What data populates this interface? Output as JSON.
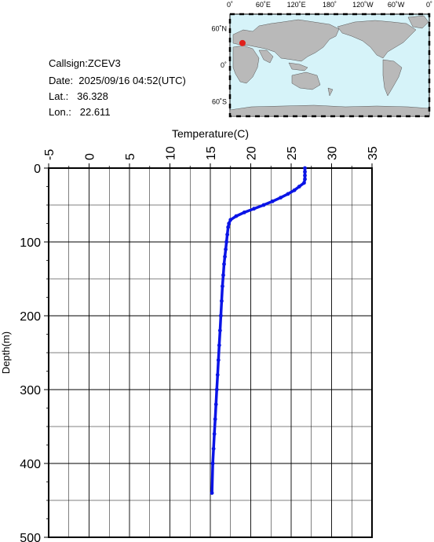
{
  "meta": {
    "callsign": "Callsign:ZCEV3",
    "date": "Date:  2025/09/16 04:52(UTC)",
    "lat": "Lat.:   36.328",
    "lon": "Lon.:   22.611"
  },
  "map": {
    "lon_labels": [
      "0˚",
      "60˚E",
      "120˚E",
      "180˚",
      "120˚W",
      "60˚W",
      "0˚"
    ],
    "lat_labels": [
      "60˚N",
      "0˚",
      "60˚S"
    ],
    "ocean_color": "#d6f3f9",
    "land_color": "#b9b9b9",
    "marker_color": "#e0201b",
    "marker": {
      "lon": 22.611,
      "lat": 36.328
    }
  },
  "chart_data": {
    "type": "line",
    "title": "",
    "xlabel": "Temperature(C)",
    "ylabel": "Depth(m)",
    "xlim": [
      -5,
      35
    ],
    "ylim": [
      500,
      0
    ],
    "x_ticks": [
      "-5",
      "0",
      "5",
      "10",
      "15",
      "20",
      "25",
      "30",
      "35"
    ],
    "y_ticks": [
      "0",
      "100",
      "200",
      "300",
      "400",
      "500"
    ],
    "x_axis_position": "top",
    "grid": true,
    "line_color": "#0a14e6",
    "series": [
      {
        "x": [
          26.7,
          26.7,
          26.7,
          26.7,
          26.6,
          26.0,
          25.4,
          24.6,
          23.7,
          22.7,
          21.6,
          20.4,
          19.2,
          18.2,
          17.5,
          17.3,
          17.2,
          17.1,
          17.0,
          16.9,
          16.8,
          16.7,
          16.6,
          16.5,
          16.4,
          16.3,
          16.2,
          16.1,
          16.0,
          15.9,
          15.8,
          15.7,
          15.6,
          15.5,
          15.4,
          15.3,
          15.2
        ],
        "y": [
          0,
          5,
          10,
          15,
          20,
          25,
          30,
          35,
          40,
          45,
          50,
          55,
          60,
          65,
          70,
          75,
          80,
          90,
          100,
          110,
          120,
          130,
          145,
          160,
          180,
          200,
          220,
          240,
          260,
          280,
          300,
          320,
          340,
          360,
          380,
          400,
          440
        ]
      }
    ]
  }
}
